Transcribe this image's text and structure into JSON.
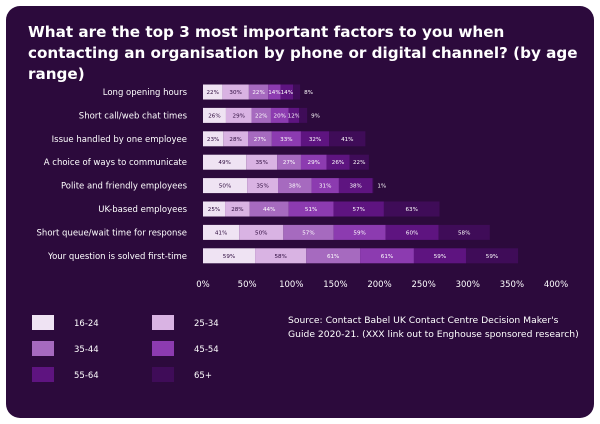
{
  "chart_data": {
    "type": "bar",
    "orientation": "horizontal",
    "stacked": true,
    "title": "What are the top 3 most important factors to you when contacting an organisation by phone or digital channel? (by age range)",
    "categories": [
      "Long opening hours",
      "Short call/web chat times",
      "Issue handled by one employee",
      "A choice of ways to communicate",
      "Polite and friendly employees",
      "UK-based employees",
      "Short queue/wait time for response",
      "Your question is solved first-time"
    ],
    "series": [
      {
        "name": "16-24",
        "color": "#efe3f3",
        "values": [
          22,
          26,
          23,
          49,
          50,
          25,
          41,
          59
        ]
      },
      {
        "name": "25-34",
        "color": "#d9b3e3",
        "values": [
          30,
          29,
          28,
          35,
          35,
          28,
          50,
          58
        ]
      },
      {
        "name": "35-44",
        "color": "#a66abf",
        "values": [
          22,
          22,
          27,
          27,
          38,
          44,
          57,
          61
        ]
      },
      {
        "name": "45-54",
        "color": "#8c3bb0",
        "values": [
          14,
          20,
          33,
          29,
          31,
          51,
          59,
          61
        ]
      },
      {
        "name": "55-64",
        "color": "#5e1480",
        "values": [
          14,
          12,
          32,
          26,
          38,
          57,
          60,
          59
        ]
      },
      {
        "name": "65+",
        "color": "#3f0c58",
        "values": [
          8,
          9,
          41,
          22,
          1,
          63,
          58,
          59
        ]
      }
    ],
    "value_labels": [
      [
        "22%",
        "30%",
        "22%",
        "14%",
        "14%",
        "8%"
      ],
      [
        "26%",
        "29%",
        "22%",
        "20%",
        "12%",
        "9%"
      ],
      [
        "23%",
        "28%",
        "27%",
        "33%",
        "32%",
        "41%"
      ],
      [
        "49%",
        "35%",
        "27%",
        "29%",
        "26%",
        "22%"
      ],
      [
        "50%",
        "35%",
        "38%",
        "31%",
        "38%",
        "1%"
      ],
      [
        "25%",
        "28%",
        "44%",
        "51%",
        "57%",
        "63%"
      ],
      [
        "41%",
        "50%",
        "57%",
        "59%",
        "60%",
        "58%"
      ],
      [
        "59%",
        "58%",
        "61%",
        "61%",
        "59%",
        "59%"
      ]
    ],
    "x_ticks": [
      "0%",
      "50%",
      "100%",
      "150%",
      "200%",
      "250%",
      "300%",
      "350%",
      "400%"
    ],
    "xlim": [
      0,
      400
    ],
    "grid": false,
    "legend_placement": "bottom-left"
  },
  "source": "Source: Contact Babel UK Contact Centre Decision Maker's Guide 2020-21. (XXX link out to Enghouse sponsored research)"
}
